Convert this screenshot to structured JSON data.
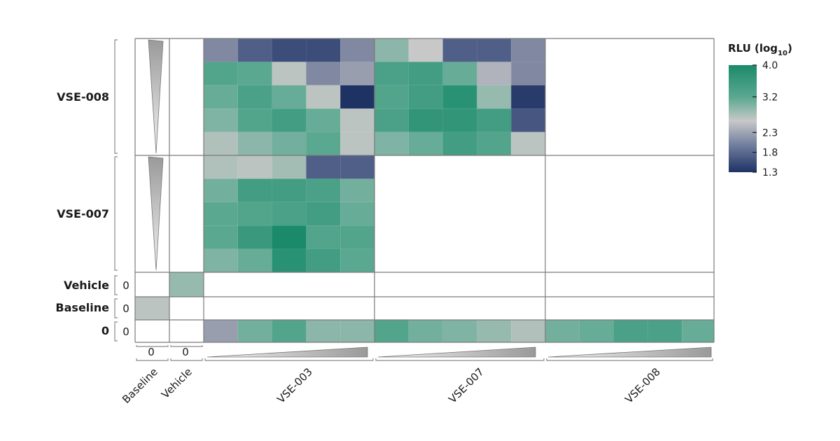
{
  "chart_data": {
    "type": "heatmap",
    "title": "",
    "colorbar": {
      "title": "RLU (log",
      "title_subscript": "10",
      "title_suffix": ")",
      "ticks": [
        "4.0",
        "3.2",
        "2.3",
        "1.8",
        "1.3"
      ],
      "tick_values": [
        4.0,
        3.2,
        2.3,
        1.8,
        1.3
      ],
      "min": 1.3,
      "max": 4.0,
      "colors": {
        "high": "#1a8a6a",
        "mid": "#c6c6c6",
        "low": "#1e3264"
      }
    },
    "row_groups": [
      {
        "label": "VSE-008",
        "gradient": "descending",
        "rows": 5
      },
      {
        "label": "VSE-007",
        "gradient": "descending",
        "rows": 5
      },
      {
        "label": "Vehicle",
        "dose": "0",
        "rows": 1
      },
      {
        "label": "Baseline",
        "dose": "0",
        "rows": 1
      },
      {
        "label": "0",
        "dose": "0",
        "rows": 1
      }
    ],
    "col_groups": [
      {
        "label": "Baseline",
        "dose": "0",
        "cols": 1
      },
      {
        "label": "Vehicle",
        "dose": "0",
        "cols": 1
      },
      {
        "label": "VSE-003",
        "gradient": "ascending",
        "cols": 5
      },
      {
        "label": "VSE-007",
        "gradient": "ascending",
        "cols": 5
      },
      {
        "label": "VSE-008",
        "gradient": "ascending",
        "cols": 5
      }
    ],
    "series": [
      {
        "row_group": "VSE-008",
        "col_group": "VSE-003",
        "values": [
          [
            2.0,
            1.8,
            1.6,
            1.6,
            2.0
          ],
          [
            3.3,
            3.2,
            2.4,
            2.0,
            2.1
          ],
          [
            3.1,
            3.4,
            3.1,
            2.4,
            1.3
          ],
          [
            2.9,
            3.3,
            3.5,
            3.1,
            2.4
          ],
          [
            2.5,
            2.8,
            3.0,
            3.2,
            2.4
          ]
        ]
      },
      {
        "row_group": "VSE-008",
        "col_group": "VSE-007",
        "values": [
          [
            2.8,
            2.3,
            1.8,
            1.8,
            2.0
          ],
          [
            3.4,
            3.5,
            3.1,
            2.2,
            2.0
          ],
          [
            3.3,
            3.5,
            3.8,
            2.7,
            1.4
          ],
          [
            3.4,
            3.7,
            3.7,
            3.5,
            1.7
          ],
          [
            2.9,
            3.1,
            3.5,
            3.3,
            2.4
          ]
        ]
      },
      {
        "row_group": "VSE-007",
        "col_group": "VSE-003",
        "values": [
          [
            2.5,
            2.4,
            2.6,
            1.8,
            1.8
          ],
          [
            3.0,
            3.5,
            3.5,
            3.4,
            3.0
          ],
          [
            3.2,
            3.3,
            3.4,
            3.5,
            3.1
          ],
          [
            3.2,
            3.6,
            4.0,
            3.3,
            3.3
          ],
          [
            2.9,
            3.1,
            3.8,
            3.5,
            3.2
          ]
        ]
      },
      {
        "row_group": "Vehicle",
        "col_group": "Vehicle",
        "values": [
          [
            2.7
          ]
        ]
      },
      {
        "row_group": "Baseline",
        "col_group": "Baseline",
        "values": [
          [
            2.4
          ]
        ]
      },
      {
        "row_group": "0",
        "col_group": "VSE-003",
        "values": [
          [
            2.1,
            3.0,
            3.3,
            2.8,
            2.8
          ]
        ]
      },
      {
        "row_group": "0",
        "col_group": "VSE-007",
        "values": [
          [
            3.3,
            3.0,
            2.9,
            2.7,
            2.5
          ]
        ]
      },
      {
        "row_group": "0",
        "col_group": "VSE-008",
        "values": [
          [
            3.0,
            3.1,
            3.4,
            3.4,
            3.1
          ]
        ]
      }
    ]
  }
}
